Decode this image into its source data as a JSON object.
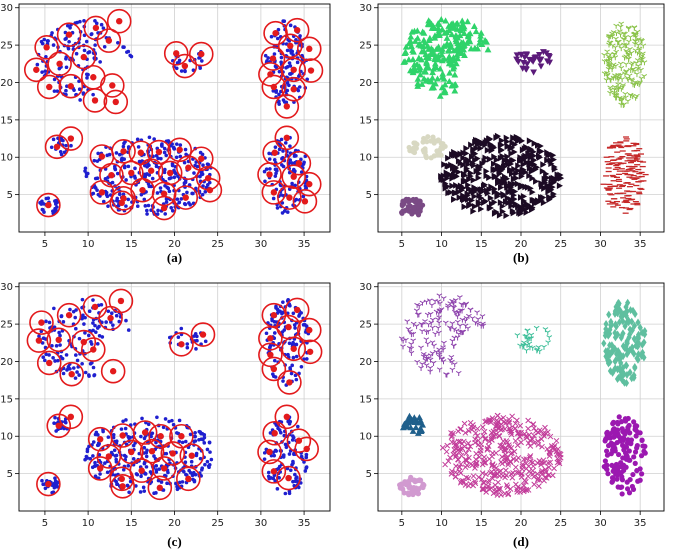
{
  "panels": [
    {
      "id": "a",
      "label": "(a)",
      "kind": "centers"
    },
    {
      "id": "b",
      "label": "(b)",
      "kind": "clusters"
    },
    {
      "id": "c",
      "label": "(c)",
      "kind": "centers"
    },
    {
      "id": "d",
      "label": "(d)",
      "kind": "clusters"
    }
  ],
  "colors": {
    "points_blue": "#1f1fcf",
    "center_red": "#e31a1c",
    "circle_red": "#e31a1c",
    "grid": "#d0d0d0",
    "axis": "#000000",
    "b_green": "#2fd36a",
    "b_purple": "#5b1a7a",
    "b_lime": "#8bc34a",
    "b_beige": "#d8d8c2",
    "b_black": "#1c0b24",
    "b_mauve": "#7a4a85",
    "b_red": "#c62828",
    "d_violet": "#8e44ad",
    "d_teal": "#3fbf9a",
    "d_seagreen": "#5fbf9f",
    "d_navy": "#1f5f8b",
    "d_magenta": "#c23c9a",
    "d_pink": "#d19ad0",
    "d_purple": "#9b18b0"
  },
  "chart_data": [
    {
      "panel": "a",
      "type": "scatter",
      "xlim": [
        2,
        38
      ],
      "ylim": [
        0,
        30.5
      ],
      "xticks": [
        5,
        10,
        15,
        20,
        25,
        30,
        35
      ],
      "yticks": [
        5,
        10,
        15,
        20,
        25,
        30
      ],
      "grid": true,
      "clusters": [
        {
          "shape": "crescent",
          "cx": 9.5,
          "cy": 23,
          "w": 9,
          "h": 7.5,
          "n": 130
        },
        {
          "shape": "blob",
          "cx": 21.5,
          "cy": 23,
          "rx": 2.2,
          "ry": 1.6,
          "n": 22
        },
        {
          "shape": "blob",
          "cx": 33,
          "cy": 22.5,
          "rx": 2.6,
          "ry": 5.8,
          "n": 120
        },
        {
          "shape": "blob",
          "cx": 6.8,
          "cy": 11.5,
          "rx": 1.3,
          "ry": 1.2,
          "n": 18
        },
        {
          "shape": "blob",
          "cx": 17,
          "cy": 7.5,
          "rx": 7.5,
          "ry": 5.3,
          "n": 300
        },
        {
          "shape": "blob",
          "cx": 33,
          "cy": 7.5,
          "rx": 2.6,
          "ry": 5.2,
          "n": 110
        },
        {
          "shape": "blob",
          "cx": 5.5,
          "cy": 3.5,
          "rx": 1.2,
          "ry": 1.1,
          "n": 25
        }
      ],
      "centers": [
        [
          5.2,
          24.7
        ],
        [
          7.8,
          26.4
        ],
        [
          10.9,
          27.3
        ],
        [
          13.6,
          28.2
        ],
        [
          4.0,
          21.7
        ],
        [
          6.7,
          22.5
        ],
        [
          9.5,
          23.4
        ],
        [
          12.4,
          25.6
        ],
        [
          8.0,
          19.5
        ],
        [
          10.6,
          20.7
        ],
        [
          12.8,
          19.6
        ],
        [
          5.5,
          19.4
        ],
        [
          10.8,
          17.6
        ],
        [
          13.2,
          17.4
        ],
        [
          20.2,
          23.9
        ],
        [
          23.1,
          23.8
        ],
        [
          21.2,
          22.2
        ],
        [
          31.7,
          26.6
        ],
        [
          34.2,
          27.0
        ],
        [
          33.4,
          24.9
        ],
        [
          31.4,
          23.2
        ],
        [
          35.6,
          24.5
        ],
        [
          31.1,
          21.1
        ],
        [
          33.8,
          21.7
        ],
        [
          35.8,
          21.6
        ],
        [
          31.5,
          19.4
        ],
        [
          33.8,
          19.1
        ],
        [
          33.0,
          16.8
        ],
        [
          6.4,
          11.4
        ],
        [
          8.0,
          12.5
        ],
        [
          11.6,
          10.1
        ],
        [
          14.1,
          10.8
        ],
        [
          16.1,
          10.6
        ],
        [
          18.2,
          10.7
        ],
        [
          20.6,
          11.0
        ],
        [
          23.1,
          9.8
        ],
        [
          12.7,
          7.6
        ],
        [
          15.0,
          7.9
        ],
        [
          17.3,
          8.2
        ],
        [
          19.5,
          7.9
        ],
        [
          21.6,
          8.6
        ],
        [
          23.9,
          7.2
        ],
        [
          11.6,
          5.3
        ],
        [
          14.1,
          4.5
        ],
        [
          16.3,
          5.6
        ],
        [
          18.8,
          5.1
        ],
        [
          21.3,
          4.6
        ],
        [
          24.1,
          5.6
        ],
        [
          13.9,
          3.9
        ],
        [
          18.8,
          3.2
        ],
        [
          33.0,
          12.6
        ],
        [
          31.6,
          10.6
        ],
        [
          34.4,
          9.2
        ],
        [
          31.0,
          7.7
        ],
        [
          33.8,
          7.4
        ],
        [
          35.6,
          6.4
        ],
        [
          31.5,
          5.3
        ],
        [
          33.3,
          4.6
        ],
        [
          35.1,
          4.1
        ],
        [
          5.4,
          3.6
        ]
      ]
    },
    {
      "panel": "b",
      "type": "scatter",
      "xlim": [
        2,
        38
      ],
      "ylim": [
        0,
        30.5
      ],
      "xticks": [
        5,
        10,
        15,
        20,
        25,
        30,
        35
      ],
      "yticks": [
        5,
        10,
        15,
        20,
        25,
        30
      ],
      "grid": true,
      "clusters": [
        {
          "shape": "crescent",
          "cx": 10.5,
          "cy": 23.5,
          "w": 9,
          "h": 7.5,
          "n": 230,
          "marker": "triangle-up",
          "color": "b_green"
        },
        {
          "shape": "blob",
          "cx": 21.5,
          "cy": 23,
          "rx": 2.2,
          "ry": 1.7,
          "n": 30,
          "marker": "triangle-down",
          "color": "b_purple"
        },
        {
          "shape": "blob",
          "cx": 33,
          "cy": 22.5,
          "rx": 2.7,
          "ry": 5.6,
          "n": 180,
          "marker": "tri",
          "color": "b_lime"
        },
        {
          "shape": "blob",
          "cx": 8.2,
          "cy": 11.3,
          "rx": 2.4,
          "ry": 1.5,
          "n": 45,
          "marker": "circle",
          "color": "b_beige"
        },
        {
          "shape": "blob",
          "cx": 17.5,
          "cy": 7.5,
          "rx": 7.6,
          "ry": 5.4,
          "n": 400,
          "marker": "triangle-right",
          "color": "b_black"
        },
        {
          "shape": "blob",
          "cx": 33,
          "cy": 7.5,
          "rx": 2.7,
          "ry": 5.3,
          "n": 170,
          "marker": "dash",
          "color": "b_red"
        },
        {
          "shape": "blob",
          "cx": 6.2,
          "cy": 3.3,
          "rx": 1.6,
          "ry": 1.2,
          "n": 45,
          "marker": "circle",
          "color": "b_mauve"
        }
      ]
    },
    {
      "panel": "c",
      "type": "scatter",
      "xlim": [
        2,
        38
      ],
      "ylim": [
        0,
        30.5
      ],
      "xticks": [
        5,
        10,
        15,
        20,
        25,
        30,
        35
      ],
      "yticks": [
        5,
        10,
        15,
        20,
        25,
        30
      ],
      "grid": true,
      "clusters": [
        {
          "shape": "crescent",
          "cx": 9.5,
          "cy": 23,
          "w": 9,
          "h": 7.5,
          "n": 130
        },
        {
          "shape": "blob",
          "cx": 21.5,
          "cy": 23,
          "rx": 2.2,
          "ry": 1.6,
          "n": 22
        },
        {
          "shape": "blob",
          "cx": 33,
          "cy": 22.5,
          "rx": 2.6,
          "ry": 5.8,
          "n": 120
        },
        {
          "shape": "blob",
          "cx": 6.8,
          "cy": 11.5,
          "rx": 1.3,
          "ry": 1.2,
          "n": 18
        },
        {
          "shape": "blob",
          "cx": 17,
          "cy": 7.5,
          "rx": 7.5,
          "ry": 5.3,
          "n": 300
        },
        {
          "shape": "blob",
          "cx": 33,
          "cy": 7.5,
          "rx": 2.6,
          "ry": 5.2,
          "n": 110
        },
        {
          "shape": "blob",
          "cx": 5.5,
          "cy": 3.5,
          "rx": 1.2,
          "ry": 1.1,
          "n": 25
        }
      ],
      "centers": [
        [
          4.6,
          25.2
        ],
        [
          7.8,
          26.2
        ],
        [
          10.8,
          27.3
        ],
        [
          13.8,
          28.1
        ],
        [
          4.3,
          22.8
        ],
        [
          6.6,
          22.9
        ],
        [
          9.5,
          22.6
        ],
        [
          12.6,
          25.8
        ],
        [
          8.1,
          18.3
        ],
        [
          10.6,
          21.6
        ],
        [
          12.9,
          18.7
        ],
        [
          5.5,
          19.8
        ],
        [
          20.8,
          22.3
        ],
        [
          23.3,
          23.6
        ],
        [
          31.5,
          26.2
        ],
        [
          34.2,
          26.9
        ],
        [
          33.2,
          24.6
        ],
        [
          31.1,
          23.1
        ],
        [
          35.6,
          24.2
        ],
        [
          31.1,
          20.9
        ],
        [
          33.8,
          21.7
        ],
        [
          35.7,
          21.3
        ],
        [
          31.5,
          19.0
        ],
        [
          33.3,
          17.2
        ],
        [
          6.6,
          11.4
        ],
        [
          8.0,
          12.6
        ],
        [
          11.4,
          9.6
        ],
        [
          14.0,
          10.1
        ],
        [
          16.6,
          10.5
        ],
        [
          18.4,
          10.0
        ],
        [
          20.8,
          10.0
        ],
        [
          12.4,
          7.3
        ],
        [
          15.0,
          7.9
        ],
        [
          17.4,
          8.0
        ],
        [
          19.8,
          7.7
        ],
        [
          22.0,
          7.4
        ],
        [
          11.4,
          5.7
        ],
        [
          13.9,
          4.3
        ],
        [
          16.2,
          5.4
        ],
        [
          18.8,
          5.7
        ],
        [
          21.6,
          4.3
        ],
        [
          14.0,
          3.3
        ],
        [
          18.3,
          3.1
        ],
        [
          33.0,
          12.6
        ],
        [
          31.6,
          10.4
        ],
        [
          34.4,
          9.4
        ],
        [
          31.0,
          7.9
        ],
        [
          35.3,
          8.3
        ],
        [
          31.5,
          5.3
        ],
        [
          33.2,
          4.4
        ],
        [
          5.4,
          3.6
        ]
      ]
    },
    {
      "panel": "d",
      "type": "scatter",
      "xlim": [
        2,
        38
      ],
      "ylim": [
        0,
        30.5
      ],
      "xticks": [
        5,
        10,
        15,
        20,
        25,
        30,
        35
      ],
      "yticks": [
        5,
        10,
        15,
        20,
        25,
        30
      ],
      "grid": true,
      "clusters": [
        {
          "shape": "crescent",
          "cx": 10.5,
          "cy": 23.5,
          "w": 9,
          "h": 7.5,
          "n": 150,
          "marker": "tri",
          "color": "d_violet"
        },
        {
          "shape": "blob",
          "cx": 21.7,
          "cy": 23,
          "rx": 2.3,
          "ry": 1.7,
          "n": 30,
          "marker": "tri",
          "color": "d_teal"
        },
        {
          "shape": "blob",
          "cx": 33,
          "cy": 22.5,
          "rx": 2.7,
          "ry": 5.6,
          "n": 150,
          "marker": "diamond",
          "color": "d_seagreen"
        },
        {
          "shape": "blob",
          "cx": 6.5,
          "cy": 11.5,
          "rx": 1.4,
          "ry": 1.3,
          "n": 30,
          "marker": "triangle-up",
          "color": "d_navy"
        },
        {
          "shape": "blob",
          "cx": 17.5,
          "cy": 7.5,
          "rx": 7.6,
          "ry": 5.4,
          "n": 380,
          "marker": "x",
          "color": "d_magenta"
        },
        {
          "shape": "blob",
          "cx": 33,
          "cy": 7.5,
          "rx": 2.7,
          "ry": 5.3,
          "n": 140,
          "marker": "circle",
          "color": "d_purple"
        },
        {
          "shape": "blob",
          "cx": 6.2,
          "cy": 3.3,
          "rx": 1.6,
          "ry": 1.2,
          "n": 45,
          "marker": "circle",
          "color": "d_pink"
        }
      ]
    }
  ]
}
